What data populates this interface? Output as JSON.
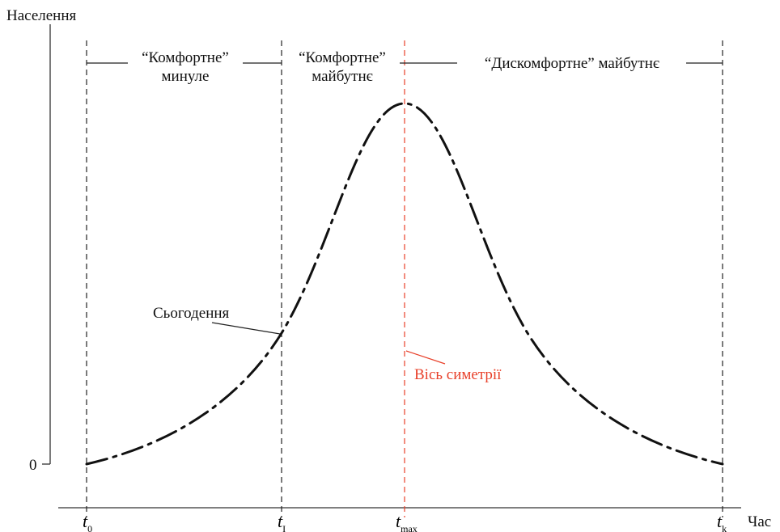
{
  "axes": {
    "y_label": "Населення",
    "x_label": "Час",
    "y_zero": "0"
  },
  "ticks": [
    {
      "base": "t",
      "sub": "0"
    },
    {
      "base": "t",
      "sub": "I"
    },
    {
      "base": "t",
      "sub": "max"
    },
    {
      "base": "t",
      "sub": "k"
    }
  ],
  "regions": {
    "past_line1": "“Комфортне”",
    "past_line2": "минуле",
    "near_line1": "“Комфортне”",
    "near_line2": "майбутнє",
    "far": "“Дискомфортне” майбутнє"
  },
  "annotations": {
    "present": "Сьогодення",
    "symmetry": "Вісь симетрії"
  },
  "colors": {
    "ink": "#111111",
    "symmetry": "#e8402a"
  }
}
